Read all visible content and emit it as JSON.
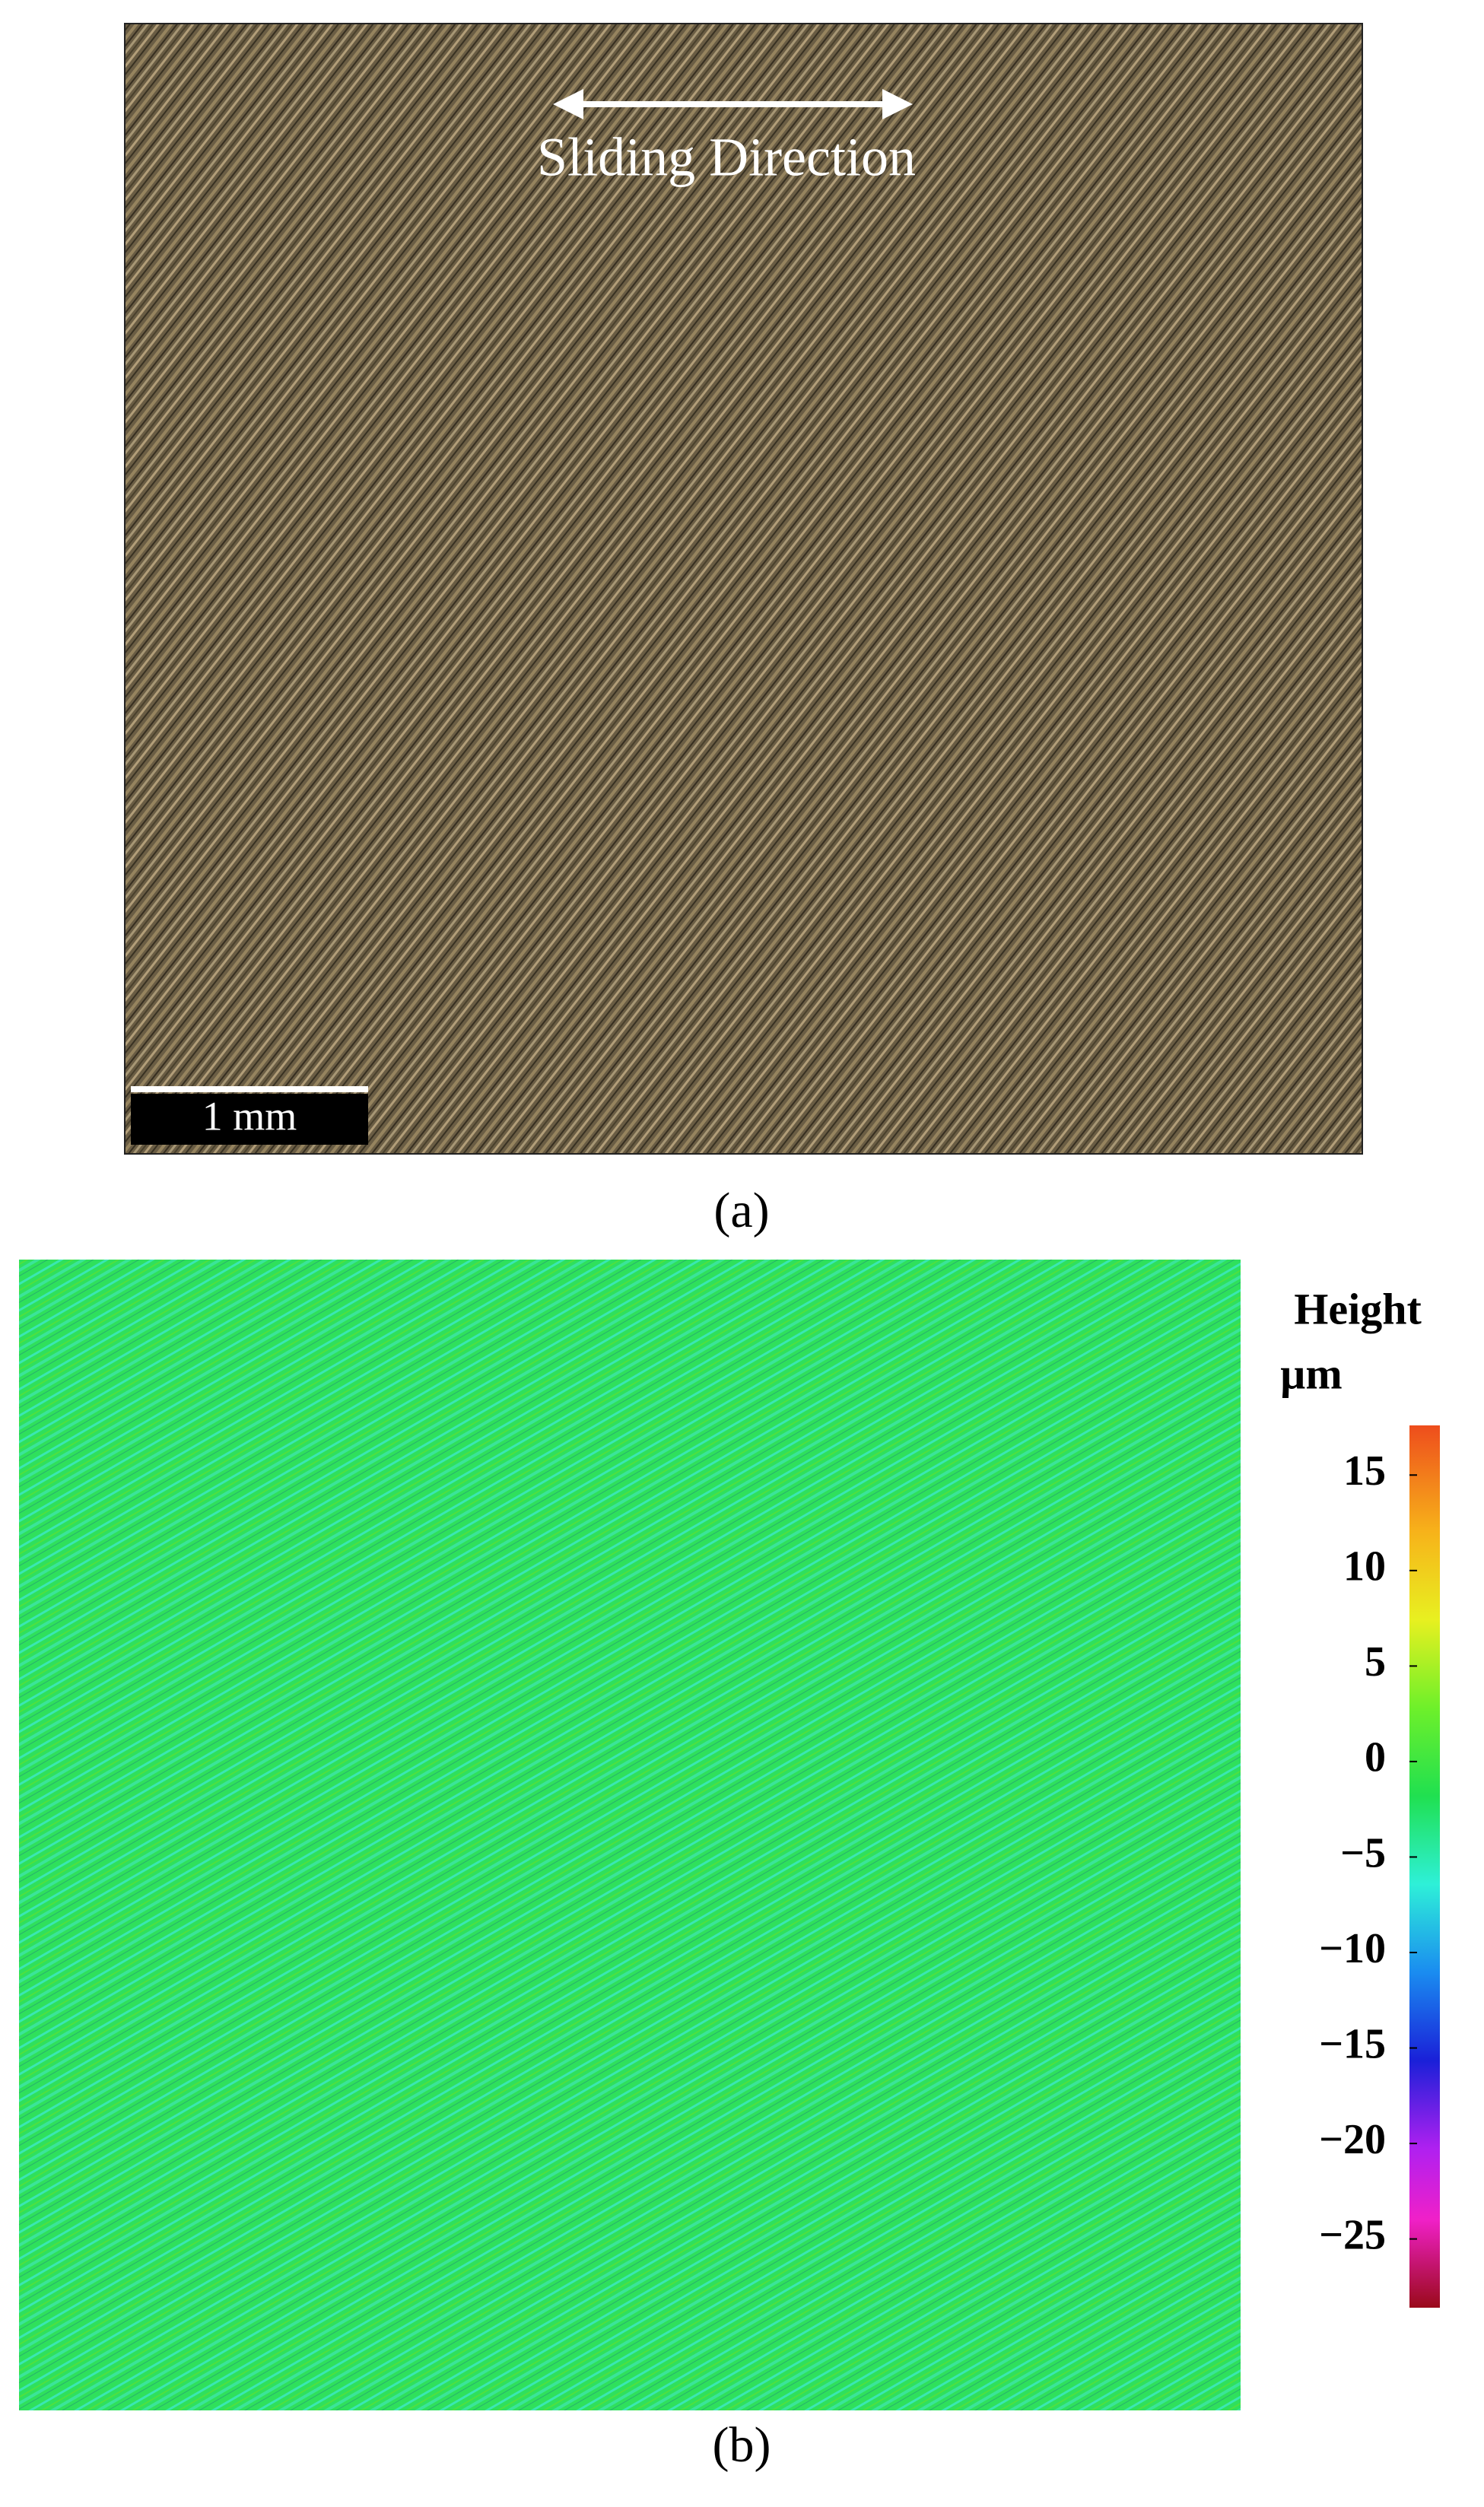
{
  "panel_a": {
    "annotation": "Sliding Direction",
    "scale_bar": "1 mm",
    "caption": "(a)"
  },
  "panel_b": {
    "caption": "(b)",
    "colorbar": {
      "title": "Height",
      "unit": "µm",
      "lim": [
        -28.6,
        17.6
      ],
      "ticks": [
        15,
        10,
        5,
        0,
        {
          "value": -5,
          "label": "−5"
        },
        {
          "value": -10,
          "label": "−10"
        },
        {
          "value": -15,
          "label": "−15"
        },
        {
          "value": -20,
          "label": "−20"
        },
        {
          "value": -25,
          "label": "−25"
        }
      ]
    }
  }
}
